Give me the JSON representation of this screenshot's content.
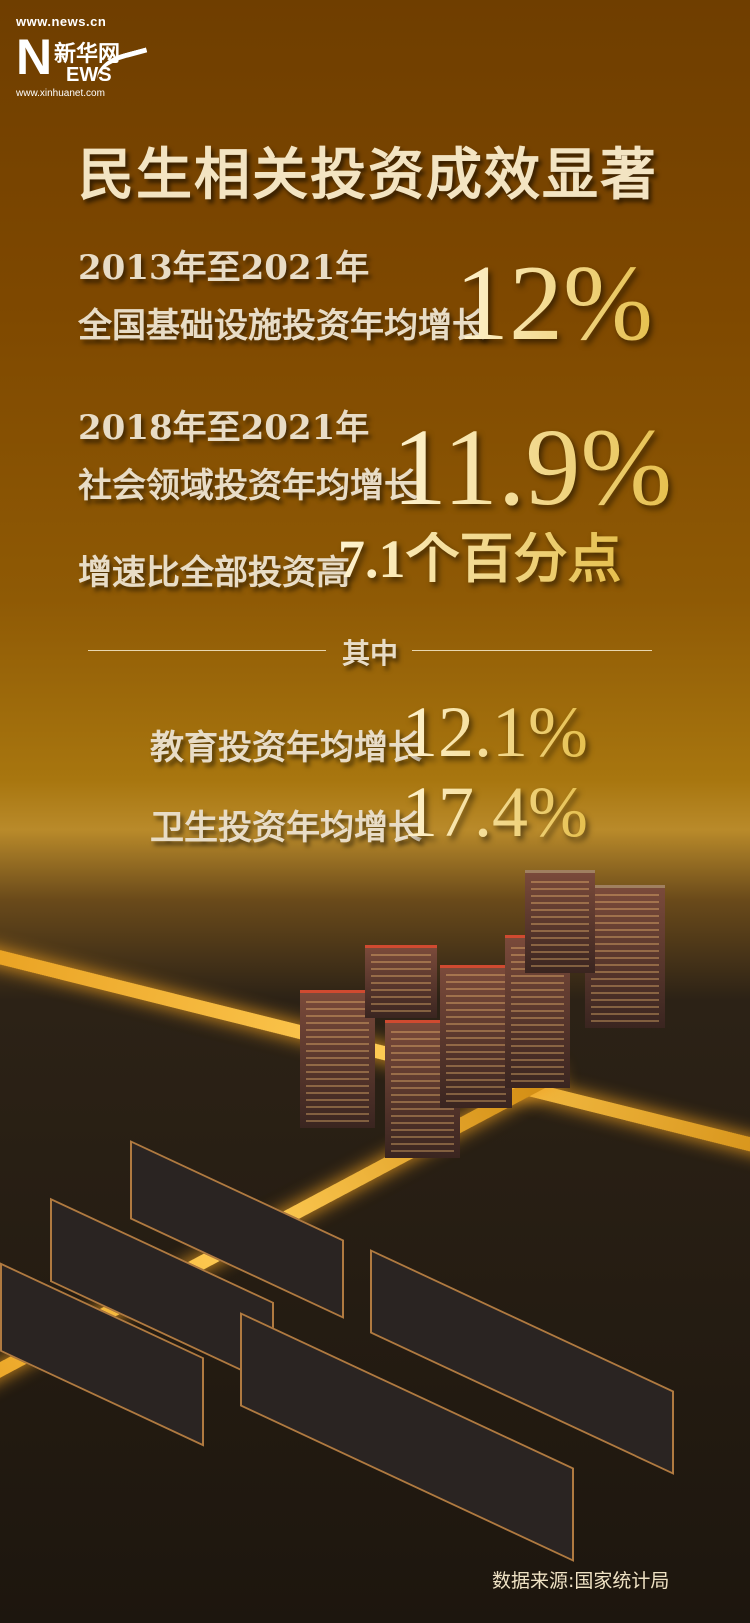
{
  "logo": {
    "url_top": "www.news.cn",
    "brand": "新华网",
    "letter_n": "N",
    "letters_ews": "EWS",
    "url_bottom": "www.xinhuanet.com"
  },
  "title": "民生相关投资成效显著",
  "stat1": {
    "period": "2013年至2021年",
    "label": "全国基础设施投资年均增长",
    "value": "12%"
  },
  "stat2": {
    "period": "2018年至2021年",
    "label": "社会领域投资年均增长",
    "value": "11.9%",
    "compare_label": "增速比全部投资高",
    "compare_value": "7.1个百分点"
  },
  "divider_label": "其中",
  "sub_stats": [
    {
      "label": "教育投资年均增长",
      "value": "12.1%"
    },
    {
      "label": "卫生投资年均增长",
      "value": "17.4%"
    }
  ],
  "source": "数据来源:国家统计局",
  "colors": {
    "bg_top": "#6f3e00",
    "bg_mid": "#a8760f",
    "number_gold": "#e6c04e",
    "text_cream": "#e8dcc6"
  }
}
